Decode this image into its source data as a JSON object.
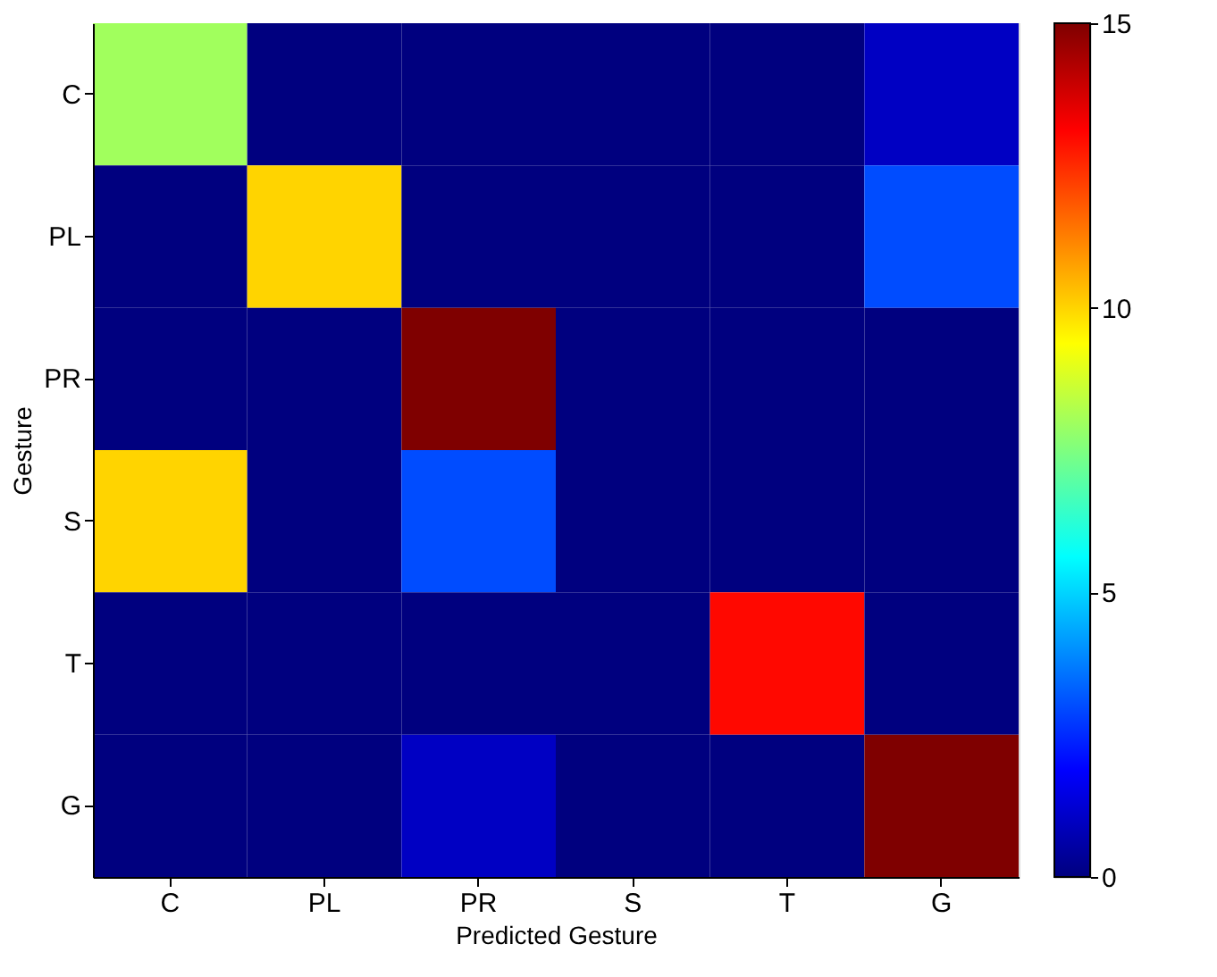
{
  "chart_data": {
    "type": "heatmap",
    "xlabel": "Predicted Gesture",
    "ylabel": "Gesture",
    "categories": [
      "C",
      "PL",
      "PR",
      "S",
      "T",
      "G"
    ],
    "y_categories": [
      "C",
      "PL",
      "PR",
      "S",
      "T",
      "G"
    ],
    "cells": [
      [
        8,
        0,
        0,
        0,
        0,
        1
      ],
      [
        0,
        10,
        0,
        0,
        0,
        3
      ],
      [
        0,
        0,
        15,
        0,
        0,
        0
      ],
      [
        10,
        0,
        3,
        0,
        0,
        0
      ],
      [
        0,
        0,
        0,
        0,
        13,
        0
      ],
      [
        0,
        0,
        1,
        0,
        0,
        15
      ]
    ],
    "clim": [
      0,
      15
    ],
    "cticks": [
      0,
      5,
      10,
      15
    ]
  }
}
